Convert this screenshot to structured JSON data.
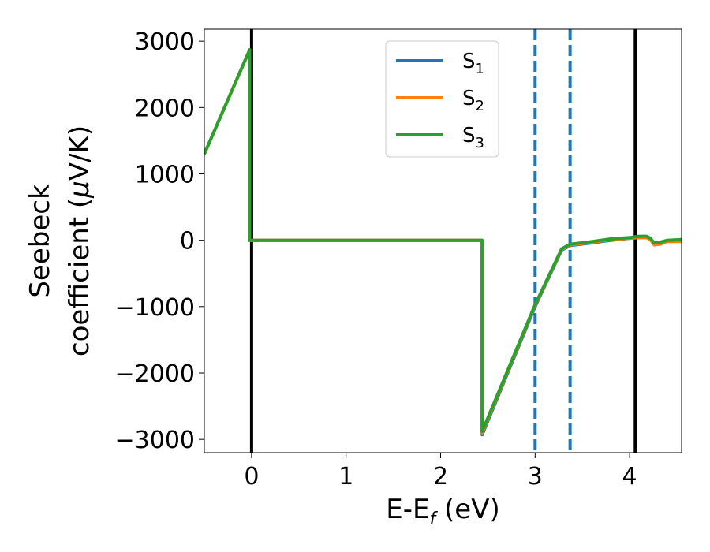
{
  "chart_data": {
    "type": "line",
    "title": "",
    "xlabel": "E-E",
    "xlabel_sub": "f",
    "xlabel_unit": " (eV)",
    "ylabel_line1": "Seebeck",
    "ylabel_line2_prefix": "coefficient  (",
    "ylabel_mu": "μ",
    "ylabel_line2_suffix": "V/K)",
    "xlim": [
      -0.5,
      4.55
    ],
    "ylim": [
      -3200,
      3180
    ],
    "xticks": [
      0,
      1,
      2,
      3,
      4
    ],
    "yticks": [
      -3000,
      -2000,
      -1000,
      0,
      1000,
      2000,
      3000
    ],
    "ytick_labels": [
      "−3000",
      "−2000",
      "−1000",
      "0",
      "1000",
      "2000",
      "3000"
    ],
    "grid": false,
    "legend_position": "upper-center",
    "vlines_solid": [
      0,
      4.06
    ],
    "vlines_dashed": [
      3.0,
      3.37
    ],
    "series": [
      {
        "name": "S",
        "subscript": "1",
        "color": "#1f77b4",
        "x": [
          -0.5,
          -0.02,
          -0.02,
          2.44,
          2.44,
          3.0,
          3.28,
          3.37,
          3.6,
          3.8,
          4.0,
          4.1,
          4.18,
          4.22,
          4.26,
          4.32,
          4.4,
          4.55
        ],
        "y": [
          1300,
          2870,
          0,
          0,
          -2930,
          -1000,
          -150,
          -80,
          -40,
          0,
          30,
          40,
          40,
          20,
          -60,
          -50,
          -10,
          10
        ]
      },
      {
        "name": "S",
        "subscript": "2",
        "color": "#ff7f0e",
        "x": [
          -0.5,
          -0.02,
          -0.02,
          2.44,
          2.44,
          3.0,
          3.28,
          3.37,
          3.6,
          3.8,
          4.0,
          4.1,
          4.18,
          4.22,
          4.26,
          4.32,
          4.4,
          4.55
        ],
        "y": [
          1300,
          2870,
          0,
          0,
          -2900,
          -980,
          -140,
          -70,
          -30,
          10,
          30,
          40,
          40,
          10,
          -70,
          -60,
          -20,
          -20
        ]
      },
      {
        "name": "S",
        "subscript": "3",
        "color": "#2ca02c",
        "x": [
          -0.5,
          -0.02,
          -0.02,
          2.44,
          2.44,
          3.0,
          3.28,
          3.37,
          3.6,
          3.8,
          4.0,
          4.1,
          4.18,
          4.22,
          4.26,
          4.32,
          4.4,
          4.55
        ],
        "y": [
          1300,
          2870,
          0,
          0,
          -2880,
          -970,
          -130,
          -60,
          -20,
          20,
          40,
          60,
          60,
          30,
          -40,
          -30,
          0,
          10
        ]
      }
    ]
  }
}
